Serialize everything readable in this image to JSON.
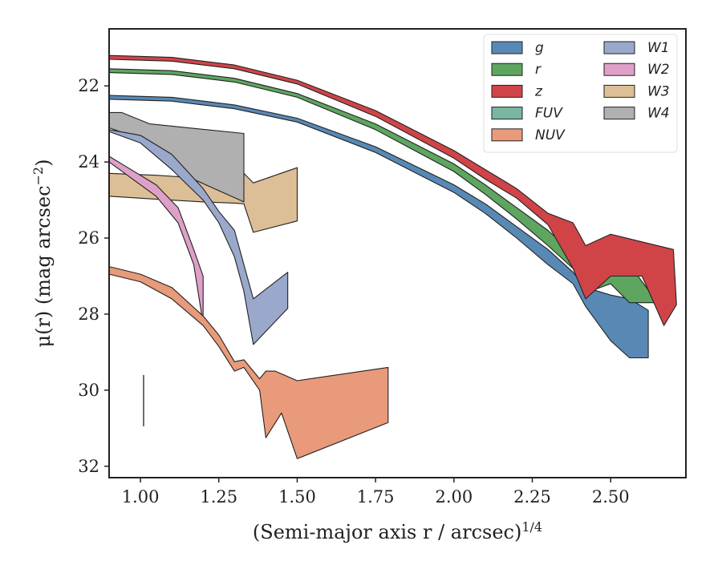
{
  "chart_data": {
    "type": "area",
    "xlabel": "(Semi-major axis r / arcsec)",
    "xlabel_sup": "1/4",
    "ylabel": "μ(r) (mag arcsec",
    "ylabel_sup": "−2",
    "ylabel_suffix": ")",
    "xlim": [
      0.9,
      2.74
    ],
    "ylim": [
      32.3,
      20.5
    ],
    "y_inverted": true,
    "xticks": [
      1.0,
      1.25,
      1.5,
      1.75,
      2.0,
      2.25,
      2.5
    ],
    "xtick_labels": [
      "1.00",
      "1.25",
      "1.50",
      "1.75",
      "2.00",
      "2.25",
      "2.50"
    ],
    "yticks": [
      22,
      24,
      26,
      28,
      30,
      32
    ],
    "ytick_labels": [
      "22",
      "24",
      "26",
      "28",
      "30",
      "32"
    ],
    "grid": false,
    "legend_position": "top-right",
    "legend_columns": 2,
    "psf_bar": {
      "x": 1.01,
      "y_top": 29.6,
      "y_bottom": 30.95
    },
    "series": [
      {
        "name": "W3",
        "color": "#dcbf96",
        "upper": [
          [
            0.9,
            24.3
          ],
          [
            1.05,
            24.35
          ],
          [
            1.2,
            24.43
          ],
          [
            1.3,
            24.4
          ],
          [
            1.33,
            24.3
          ],
          [
            1.36,
            24.55
          ],
          [
            1.5,
            24.15
          ]
        ],
        "lower": [
          [
            0.9,
            24.9
          ],
          [
            1.05,
            24.98
          ],
          [
            1.2,
            25.05
          ],
          [
            1.3,
            25.08
          ],
          [
            1.33,
            25.1
          ],
          [
            1.36,
            25.85
          ],
          [
            1.5,
            25.55
          ]
        ]
      },
      {
        "name": "W4",
        "color": "#b0b0b0",
        "upper": [
          [
            0.9,
            22.7
          ],
          [
            0.94,
            22.7
          ],
          [
            1.03,
            23.0
          ],
          [
            1.33,
            23.25
          ]
        ],
        "lower": [
          [
            0.9,
            23.1
          ],
          [
            1.0,
            23.4
          ],
          [
            1.1,
            24.2
          ],
          [
            1.33,
            25.05
          ]
        ]
      },
      {
        "name": "W1",
        "color": "#9aa8cc",
        "upper": [
          [
            0.9,
            23.15
          ],
          [
            1.0,
            23.3
          ],
          [
            1.1,
            23.8
          ],
          [
            1.2,
            24.7
          ],
          [
            1.25,
            25.3
          ],
          [
            1.3,
            25.8
          ],
          [
            1.33,
            26.7
          ],
          [
            1.36,
            27.6
          ],
          [
            1.47,
            26.9
          ]
        ],
        "lower": [
          [
            0.9,
            23.2
          ],
          [
            1.0,
            23.5
          ],
          [
            1.1,
            24.2
          ],
          [
            1.2,
            25.0
          ],
          [
            1.25,
            25.6
          ],
          [
            1.3,
            26.5
          ],
          [
            1.33,
            27.4
          ],
          [
            1.36,
            28.8
          ],
          [
            1.47,
            27.85
          ]
        ]
      },
      {
        "name": "W2",
        "color": "#dea0c8",
        "upper": [
          [
            0.9,
            23.85
          ],
          [
            0.95,
            24.1
          ],
          [
            1.05,
            24.6
          ],
          [
            1.12,
            25.2
          ],
          [
            1.17,
            26.3
          ],
          [
            1.2,
            27.0
          ]
        ],
        "lower": [
          [
            0.9,
            24.0
          ],
          [
            0.95,
            24.3
          ],
          [
            1.05,
            24.9
          ],
          [
            1.12,
            25.6
          ],
          [
            1.17,
            26.7
          ],
          [
            1.2,
            28.25
          ]
        ]
      },
      {
        "name": "NUV",
        "color": "#e89a7a",
        "upper": [
          [
            0.9,
            26.75
          ],
          [
            1.0,
            26.95
          ],
          [
            1.1,
            27.3
          ],
          [
            1.2,
            28.05
          ],
          [
            1.25,
            28.55
          ],
          [
            1.3,
            29.25
          ],
          [
            1.33,
            29.2
          ],
          [
            1.38,
            29.7
          ],
          [
            1.4,
            29.5
          ],
          [
            1.43,
            29.5
          ],
          [
            1.5,
            29.75
          ],
          [
            1.79,
            29.4
          ]
        ],
        "lower": [
          [
            0.9,
            26.95
          ],
          [
            1.0,
            27.15
          ],
          [
            1.1,
            27.6
          ],
          [
            1.2,
            28.3
          ],
          [
            1.25,
            28.85
          ],
          [
            1.3,
            29.5
          ],
          [
            1.33,
            29.4
          ],
          [
            1.38,
            30.0
          ],
          [
            1.4,
            31.25
          ],
          [
            1.45,
            30.6
          ],
          [
            1.5,
            31.8
          ],
          [
            1.79,
            30.85
          ]
        ]
      },
      {
        "name": "g",
        "color": "#5889b5",
        "upper": [
          [
            0.9,
            22.25
          ],
          [
            1.1,
            22.3
          ],
          [
            1.3,
            22.5
          ],
          [
            1.5,
            22.85
          ],
          [
            1.75,
            23.6
          ],
          [
            2.0,
            24.6
          ],
          [
            2.1,
            25.1
          ],
          [
            2.2,
            25.7
          ],
          [
            2.3,
            26.3
          ],
          [
            2.38,
            26.9
          ],
          [
            2.42,
            27.3
          ],
          [
            2.5,
            27.5
          ],
          [
            2.56,
            27.6
          ],
          [
            2.62,
            27.9
          ]
        ],
        "lower": [
          [
            0.9,
            22.35
          ],
          [
            1.1,
            22.4
          ],
          [
            1.3,
            22.6
          ],
          [
            1.5,
            22.95
          ],
          [
            1.75,
            23.75
          ],
          [
            2.0,
            24.8
          ],
          [
            2.1,
            25.35
          ],
          [
            2.2,
            26.0
          ],
          [
            2.3,
            26.7
          ],
          [
            2.38,
            27.2
          ],
          [
            2.42,
            27.8
          ],
          [
            2.5,
            28.7
          ],
          [
            2.56,
            29.15
          ],
          [
            2.62,
            29.15
          ]
        ]
      },
      {
        "name": "r",
        "color": "#5ea560",
        "upper": [
          [
            0.9,
            21.55
          ],
          [
            1.1,
            21.6
          ],
          [
            1.3,
            21.8
          ],
          [
            1.5,
            22.2
          ],
          [
            1.75,
            23.0
          ],
          [
            2.0,
            24.05
          ],
          [
            2.1,
            24.6
          ],
          [
            2.2,
            25.2
          ],
          [
            2.3,
            25.8
          ],
          [
            2.38,
            26.4
          ],
          [
            2.45,
            27.0
          ],
          [
            2.5,
            26.6
          ],
          [
            2.56,
            26.7
          ],
          [
            2.65,
            27.7
          ]
        ],
        "lower": [
          [
            0.9,
            21.65
          ],
          [
            1.1,
            21.7
          ],
          [
            1.3,
            21.9
          ],
          [
            1.5,
            22.3
          ],
          [
            1.75,
            23.15
          ],
          [
            2.0,
            24.25
          ],
          [
            2.1,
            24.85
          ],
          [
            2.2,
            25.5
          ],
          [
            2.3,
            26.2
          ],
          [
            2.38,
            26.8
          ],
          [
            2.45,
            27.35
          ],
          [
            2.5,
            27.2
          ],
          [
            2.56,
            27.7
          ],
          [
            2.65,
            27.7
          ]
        ]
      },
      {
        "name": "z",
        "color": "#d04448",
        "upper": [
          [
            0.9,
            21.2
          ],
          [
            1.1,
            21.25
          ],
          [
            1.3,
            21.45
          ],
          [
            1.5,
            21.85
          ],
          [
            1.75,
            22.65
          ],
          [
            2.0,
            23.7
          ],
          [
            2.1,
            24.2
          ],
          [
            2.2,
            24.7
          ],
          [
            2.3,
            25.35
          ],
          [
            2.38,
            25.6
          ],
          [
            2.42,
            26.2
          ],
          [
            2.5,
            25.9
          ],
          [
            2.6,
            26.1
          ],
          [
            2.7,
            26.3
          ]
        ],
        "lower": [
          [
            0.9,
            21.3
          ],
          [
            1.1,
            21.35
          ],
          [
            1.3,
            21.55
          ],
          [
            1.5,
            21.95
          ],
          [
            1.75,
            22.8
          ],
          [
            2.0,
            23.9
          ],
          [
            2.1,
            24.45
          ],
          [
            2.2,
            24.95
          ],
          [
            2.3,
            25.65
          ],
          [
            2.38,
            26.8
          ],
          [
            2.42,
            27.6
          ],
          [
            2.5,
            27.0
          ],
          [
            2.6,
            27.0
          ],
          [
            2.67,
            28.3
          ],
          [
            2.71,
            27.75
          ]
        ]
      }
    ],
    "legend_order": [
      "g",
      "r",
      "z",
      "FUV",
      "NUV",
      "W1",
      "W2",
      "W3",
      "W4"
    ],
    "legend_colors": {
      "g": "#5889b5",
      "r": "#5ea560",
      "z": "#d04448",
      "FUV": "#79b7a2",
      "NUV": "#e89a7a",
      "W1": "#9aa8cc",
      "W2": "#dea0c8",
      "W3": "#dcbf96",
      "W4": "#b0b0b0"
    }
  }
}
